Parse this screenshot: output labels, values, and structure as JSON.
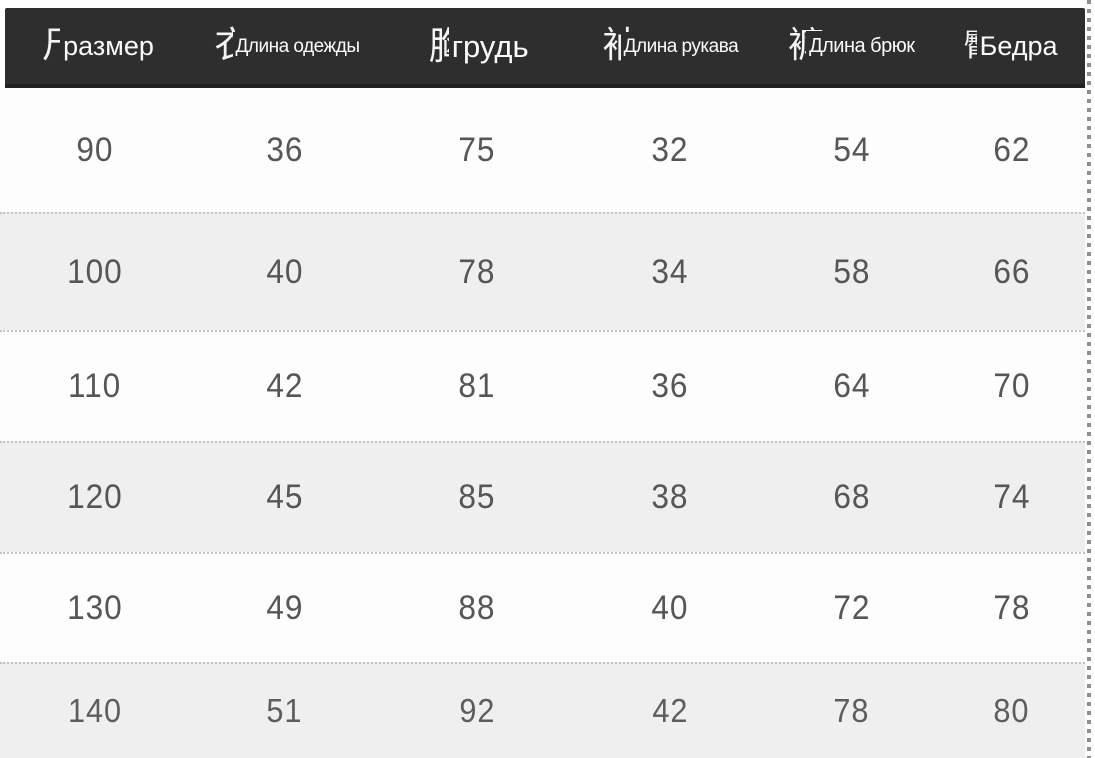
{
  "table": {
    "columns": [
      {
        "cn": "尺",
        "label": "размер"
      },
      {
        "cn": "衣",
        "label": "Длина одежды"
      },
      {
        "cn": "胸",
        "label": "грудь"
      },
      {
        "cn": "袖",
        "label": "Длина рукава"
      },
      {
        "cn": "裤",
        "label": "Длина брюк"
      },
      {
        "cn": "臀",
        "label": "Бедра"
      }
    ],
    "rows": [
      [
        "90",
        "36",
        "75",
        "32",
        "54",
        "62"
      ],
      [
        "100",
        "40",
        "78",
        "34",
        "58",
        "66"
      ],
      [
        "110",
        "42",
        "81",
        "36",
        "64",
        "70"
      ],
      [
        "120",
        "45",
        "85",
        "38",
        "68",
        "74"
      ],
      [
        "130",
        "49",
        "88",
        "40",
        "72",
        "78"
      ],
      [
        "140",
        "51",
        "92",
        "42",
        "78",
        "80"
      ]
    ]
  },
  "chart_data": {
    "type": "table",
    "columns": [
      "尺 размер",
      "衣 Длина одежды",
      "胸 грудь",
      "袖 Длина рукава",
      "裤 Длина брюк",
      "臀 Бедра"
    ],
    "rows": [
      [
        90,
        36,
        75,
        32,
        54,
        62
      ],
      [
        100,
        40,
        78,
        34,
        58,
        66
      ],
      [
        110,
        42,
        81,
        36,
        64,
        70
      ],
      [
        120,
        45,
        85,
        38,
        68,
        74
      ],
      [
        130,
        49,
        88,
        40,
        72,
        78
      ],
      [
        140,
        51,
        92,
        42,
        78,
        80
      ]
    ],
    "layout_hints": {
      "header_style": "dark band, white text, Chinese character + Russian overlay label",
      "row_striping": "white / light gray alternating, dotted separators",
      "right_edge": "perforated torn edge"
    }
  },
  "colors": {
    "header_bg": "#2e2e2e",
    "header_text": "#ffffff",
    "row_bg": "#fdfdfd",
    "row_alt_bg": "#efefef",
    "number_text": "#565656",
    "dotted_separator": "#c4c4c4"
  }
}
